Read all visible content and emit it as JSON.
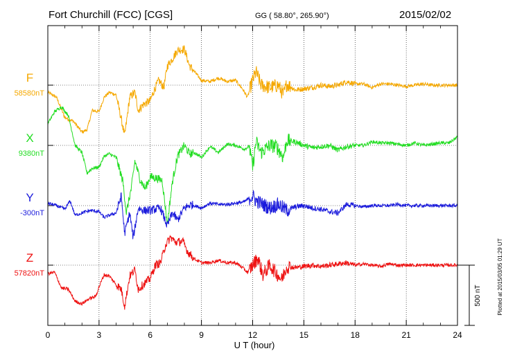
{
  "header": {
    "station": "Fort Churchill (FCC)  [CGS]",
    "coords": "GG ( 58.80°, 265.90°)",
    "date": "2015/02/02"
  },
  "side_note": "Plotted at 2015/03/05 01:29 UT",
  "scale_label": "500 nT",
  "chart_data": {
    "type": "line",
    "xlabel": "U T (hour)",
    "xlim": [
      0,
      24
    ],
    "xticks": [
      0,
      3,
      6,
      9,
      12,
      15,
      18,
      21,
      24
    ],
    "grid": true,
    "scale_bar_nT": 500,
    "series": [
      {
        "name": "F",
        "baseline_label": "58580nT",
        "color": "#f5a800",
        "baseline_nT": 58580,
        "points": [
          [
            0,
            -60
          ],
          [
            0.5,
            -100
          ],
          [
            1,
            -270
          ],
          [
            1.5,
            -300
          ],
          [
            2,
            -390
          ],
          [
            2.3,
            -370
          ],
          [
            2.6,
            -210
          ],
          [
            3,
            -220
          ],
          [
            3.3,
            -100
          ],
          [
            3.6,
            -60
          ],
          [
            4,
            -80
          ],
          [
            4.3,
            -280
          ],
          [
            4.5,
            -420
          ],
          [
            4.8,
            -100
          ],
          [
            5.1,
            -60
          ],
          [
            5.3,
            -210
          ],
          [
            5.6,
            -160
          ],
          [
            6,
            -130
          ],
          [
            6.2,
            -50
          ],
          [
            6.5,
            40
          ],
          [
            6.8,
            -20
          ],
          [
            7,
            160
          ],
          [
            7.3,
            220
          ],
          [
            7.6,
            290
          ],
          [
            8,
            300
          ],
          [
            8.3,
            160
          ],
          [
            8.6,
            110
          ],
          [
            9,
            40
          ],
          [
            9.5,
            30
          ],
          [
            10,
            60
          ],
          [
            10.5,
            30
          ],
          [
            11,
            40
          ],
          [
            11.4,
            -30
          ],
          [
            11.7,
            -100
          ],
          [
            12,
            40
          ],
          [
            12.2,
            110
          ],
          [
            12.5,
            0
          ],
          [
            13,
            -20
          ],
          [
            13.5,
            0
          ],
          [
            13.8,
            -80
          ],
          [
            14,
            10
          ],
          [
            14.5,
            -40
          ],
          [
            15,
            -30
          ],
          [
            15.5,
            -20
          ],
          [
            16,
            0
          ],
          [
            16.5,
            -10
          ],
          [
            17,
            0
          ],
          [
            17.5,
            30
          ],
          [
            18,
            10
          ],
          [
            18.5,
            10
          ],
          [
            19,
            -20
          ],
          [
            19.5,
            10
          ],
          [
            20,
            10
          ],
          [
            20.5,
            0
          ],
          [
            21,
            -10
          ],
          [
            21.5,
            0
          ],
          [
            22,
            10
          ],
          [
            22.5,
            0
          ],
          [
            23,
            0
          ],
          [
            23.5,
            0
          ],
          [
            24,
            0
          ]
        ]
      },
      {
        "name": "X",
        "baseline_label": "9380nT",
        "color": "#22dd22",
        "baseline_nT": 9380,
        "points": [
          [
            0,
            180
          ],
          [
            0.4,
            280
          ],
          [
            0.8,
            320
          ],
          [
            1.2,
            250
          ],
          [
            1.6,
            0
          ],
          [
            2,
            -60
          ],
          [
            2.3,
            -230
          ],
          [
            2.6,
            -190
          ],
          [
            3,
            -180
          ],
          [
            3.3,
            -90
          ],
          [
            3.6,
            -70
          ],
          [
            4,
            -100
          ],
          [
            4.4,
            -300
          ],
          [
            4.6,
            -560
          ],
          [
            4.9,
            -350
          ],
          [
            5.1,
            -130
          ],
          [
            5.4,
            -280
          ],
          [
            5.7,
            -360
          ],
          [
            6,
            -260
          ],
          [
            6.3,
            -270
          ],
          [
            6.7,
            -290
          ],
          [
            7,
            -650
          ],
          [
            7.3,
            -300
          ],
          [
            7.6,
            -90
          ],
          [
            8,
            0
          ],
          [
            8.3,
            -70
          ],
          [
            8.6,
            -60
          ],
          [
            9,
            -100
          ],
          [
            9.5,
            -10
          ],
          [
            10,
            -60
          ],
          [
            10.5,
            10
          ],
          [
            11,
            0
          ],
          [
            11.5,
            -30
          ],
          [
            11.8,
            -10
          ],
          [
            12,
            -180
          ],
          [
            12.2,
            30
          ],
          [
            12.5,
            -60
          ],
          [
            13,
            0
          ],
          [
            13.4,
            -10
          ],
          [
            13.8,
            -100
          ],
          [
            14,
            40
          ],
          [
            14.5,
            30
          ],
          [
            15,
            0
          ],
          [
            15.5,
            -20
          ],
          [
            16,
            -10
          ],
          [
            16.5,
            0
          ],
          [
            17,
            -40
          ],
          [
            17.5,
            -10
          ],
          [
            18,
            0
          ],
          [
            18.5,
            0
          ],
          [
            19,
            30
          ],
          [
            19.5,
            20
          ],
          [
            20,
            20
          ],
          [
            20.5,
            10
          ],
          [
            21,
            0
          ],
          [
            21.5,
            20
          ],
          [
            22,
            0
          ],
          [
            22.5,
            10
          ],
          [
            23,
            20
          ],
          [
            23.5,
            20
          ],
          [
            24,
            70
          ]
        ]
      },
      {
        "name": "Y",
        "baseline_label": "-300nT",
        "color": "#1a1adc",
        "baseline_nT": -300,
        "points": [
          [
            0,
            20
          ],
          [
            0.5,
            0
          ],
          [
            1,
            -30
          ],
          [
            1.3,
            40
          ],
          [
            1.6,
            -80
          ],
          [
            2,
            -60
          ],
          [
            2.5,
            -40
          ],
          [
            3,
            -50
          ],
          [
            3.3,
            -100
          ],
          [
            3.6,
            -80
          ],
          [
            4,
            -60
          ],
          [
            4.3,
            80
          ],
          [
            4.5,
            -230
          ],
          [
            4.8,
            -60
          ],
          [
            5,
            -270
          ],
          [
            5.3,
            -20
          ],
          [
            5.6,
            -40
          ],
          [
            6,
            -40
          ],
          [
            6.3,
            -30
          ],
          [
            6.6,
            -20
          ],
          [
            7,
            -170
          ],
          [
            7.3,
            -60
          ],
          [
            7.6,
            -120
          ],
          [
            8,
            -20
          ],
          [
            8.4,
            10
          ],
          [
            8.8,
            -10
          ],
          [
            9,
            -20
          ],
          [
            9.5,
            20
          ],
          [
            10,
            10
          ],
          [
            10.5,
            10
          ],
          [
            11,
            20
          ],
          [
            11.5,
            30
          ],
          [
            11.8,
            60
          ],
          [
            12,
            80
          ],
          [
            12.2,
            40
          ],
          [
            12.6,
            10
          ],
          [
            13,
            -20
          ],
          [
            13.5,
            10
          ],
          [
            14,
            -40
          ],
          [
            14.5,
            -10
          ],
          [
            15,
            0
          ],
          [
            15.5,
            -20
          ],
          [
            16,
            -30
          ],
          [
            16.5,
            -50
          ],
          [
            17,
            -60
          ],
          [
            17.5,
            10
          ],
          [
            18,
            0
          ],
          [
            18.5,
            -10
          ],
          [
            19,
            0
          ],
          [
            19.5,
            0
          ],
          [
            20,
            0
          ],
          [
            20.5,
            10
          ],
          [
            21,
            0
          ],
          [
            21.5,
            0
          ],
          [
            22,
            0
          ],
          [
            22.5,
            0
          ],
          [
            23,
            0
          ],
          [
            24,
            0
          ]
        ]
      },
      {
        "name": "Z",
        "baseline_label": "57820nT",
        "color": "#ee1111",
        "baseline_nT": 57820,
        "points": [
          [
            0,
            -70
          ],
          [
            0.4,
            -60
          ],
          [
            0.8,
            -190
          ],
          [
            1.2,
            -200
          ],
          [
            1.6,
            -300
          ],
          [
            2,
            -320
          ],
          [
            2.4,
            -280
          ],
          [
            2.8,
            -260
          ],
          [
            3,
            -180
          ],
          [
            3.3,
            -80
          ],
          [
            3.6,
            -90
          ],
          [
            4,
            -160
          ],
          [
            4.3,
            -200
          ],
          [
            4.5,
            -340
          ],
          [
            4.8,
            -90
          ],
          [
            5.1,
            -40
          ],
          [
            5.3,
            -200
          ],
          [
            5.6,
            -160
          ],
          [
            6,
            -110
          ],
          [
            6.3,
            0
          ],
          [
            6.6,
            20
          ],
          [
            6.9,
            170
          ],
          [
            7.2,
            230
          ],
          [
            7.5,
            190
          ],
          [
            7.9,
            200
          ],
          [
            8.2,
            110
          ],
          [
            8.6,
            50
          ],
          [
            9,
            20
          ],
          [
            9.5,
            20
          ],
          [
            10,
            40
          ],
          [
            10.5,
            20
          ],
          [
            11,
            20
          ],
          [
            11.4,
            -20
          ],
          [
            11.7,
            -60
          ],
          [
            12,
            0
          ],
          [
            12.3,
            60
          ],
          [
            12.6,
            -80
          ],
          [
            13,
            0
          ],
          [
            13.3,
            -50
          ],
          [
            13.7,
            -120
          ],
          [
            14,
            -10
          ],
          [
            14.5,
            -20
          ],
          [
            15,
            -10
          ],
          [
            15.5,
            0
          ],
          [
            16,
            -10
          ],
          [
            16.5,
            0
          ],
          [
            17,
            10
          ],
          [
            17.5,
            20
          ],
          [
            18,
            0
          ],
          [
            18.5,
            10
          ],
          [
            19,
            0
          ],
          [
            19.5,
            -10
          ],
          [
            20,
            10
          ],
          [
            20.5,
            0
          ],
          [
            21,
            0
          ],
          [
            21.5,
            0
          ],
          [
            22,
            0
          ],
          [
            22.5,
            0
          ],
          [
            23,
            0
          ],
          [
            24,
            0
          ]
        ]
      }
    ]
  }
}
